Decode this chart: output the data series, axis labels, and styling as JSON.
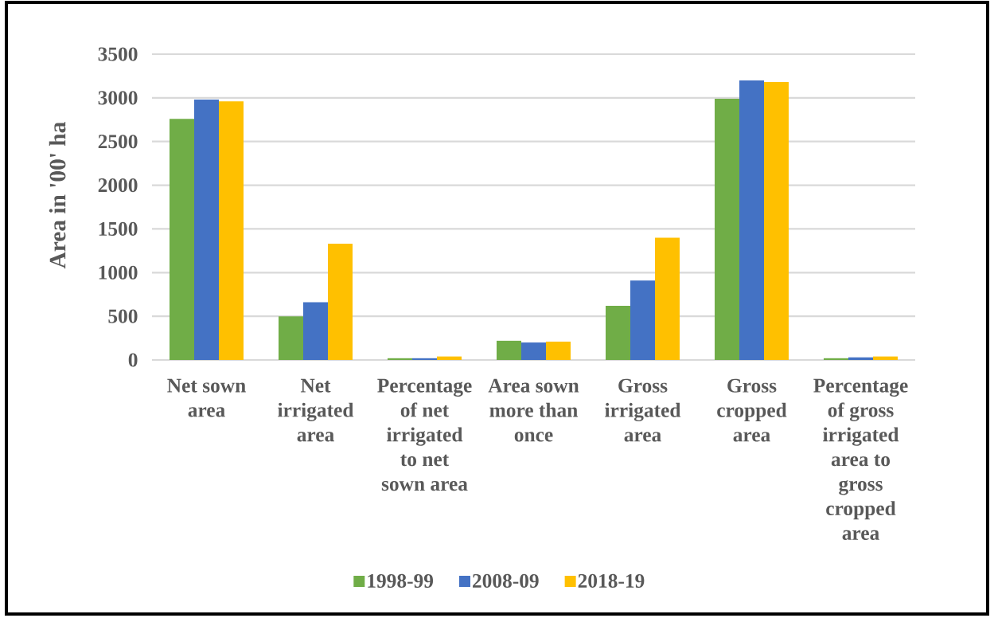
{
  "chart_data": {
    "type": "bar",
    "ylabel": "Area in '00' ha",
    "categories": [
      "Net sown area",
      "Net irrigated area",
      "Percentage of net irrigated to net sown area",
      "Area sown more than once",
      "Gross irrigated area",
      "Gross cropped area",
      "Percentage of gross irrigated area to gross cropped area"
    ],
    "series": [
      {
        "name": "1998-99",
        "color": "#70ad47",
        "values": [
          2760,
          500,
          20,
          220,
          620,
          2990,
          20
        ]
      },
      {
        "name": "2008-09",
        "color": "#4472c4",
        "values": [
          2980,
          660,
          20,
          200,
          910,
          3200,
          30
        ]
      },
      {
        "name": "2018-19",
        "color": "#ffc000",
        "values": [
          2960,
          1330,
          40,
          210,
          1400,
          3180,
          40
        ]
      }
    ],
    "ylim": [
      0,
      3500
    ],
    "yticks": [
      0,
      500,
      1000,
      1500,
      2000,
      2500,
      3000,
      3500
    ],
    "grid": "y",
    "legend": "bottom"
  }
}
